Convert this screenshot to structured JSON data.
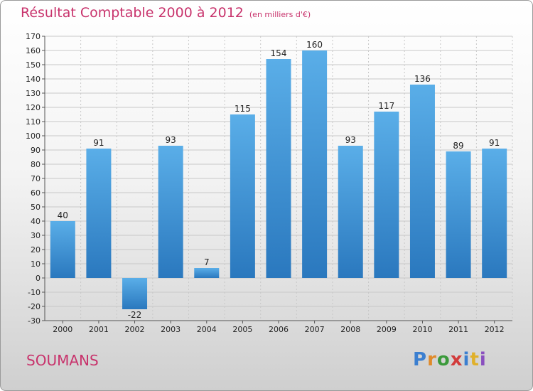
{
  "header": {
    "title": "Résultat Comptable 2000 à 2012",
    "subtitle": "(en milliers d'€)"
  },
  "footer": {
    "city": "SOUMANS",
    "logo": "Proxiti"
  },
  "colors": {
    "title": "#c8336c",
    "bar_top": "#5aaee8",
    "bar_bottom": "#2a78be",
    "grid": "#c8c8c8"
  },
  "chart_data": {
    "type": "bar",
    "title": "Résultat Comptable 2000 à 2012",
    "subtitle": "(en milliers d'€)",
    "xlabel": "",
    "ylabel": "",
    "categories": [
      "2000",
      "2001",
      "2002",
      "2003",
      "2004",
      "2005",
      "2006",
      "2007",
      "2008",
      "2009",
      "2010",
      "2011",
      "2012"
    ],
    "values": [
      40,
      91,
      -22,
      93,
      7,
      115,
      154,
      160,
      93,
      117,
      136,
      89,
      91
    ],
    "ylim": [
      -30,
      170
    ],
    "ytick_step": 10,
    "grid": true
  }
}
